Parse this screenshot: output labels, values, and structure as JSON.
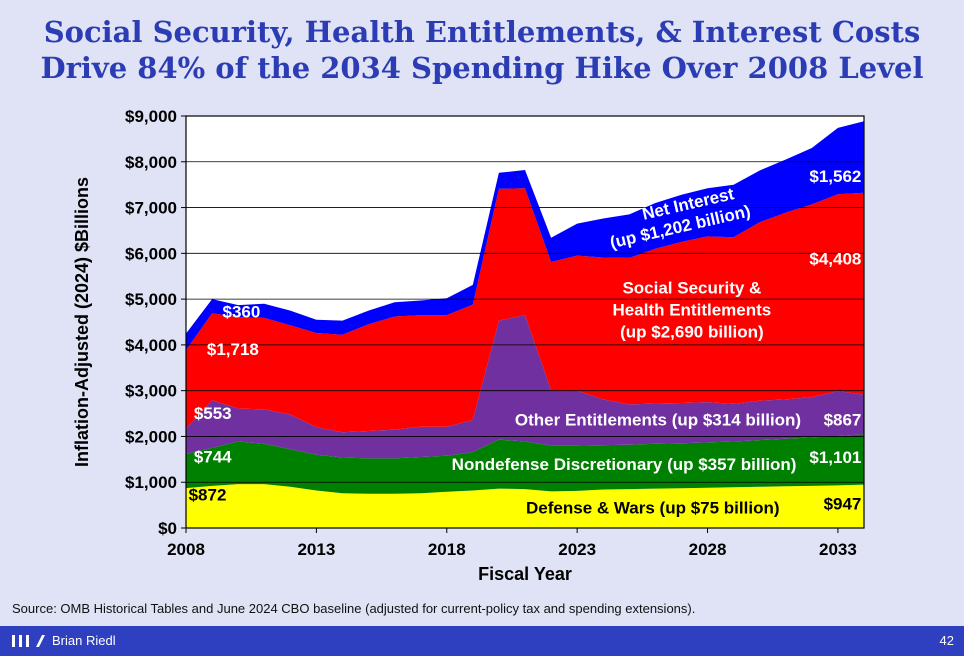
{
  "title_lines": [
    "Social Security, Health Entitlements, & Interest Costs",
    "Drive 84% of the 2034 Spending Hike Over 2008 Level"
  ],
  "source": "Source: OMB Historical Tables and June 2024 CBO baseline (adjusted for current-policy tax and spending extensions).",
  "footer": {
    "author": "Brian Riedl",
    "page_number": "42"
  },
  "colors": {
    "defense": "#ffff00",
    "nondefense": "#008000",
    "other_entitlements": "#7030a0",
    "social_security_health": "#ff0000",
    "net_interest": "#0000ff",
    "plot_bg": "#ffffff",
    "title": "#2b3cb5",
    "footer_bg": "#2e3fbf"
  },
  "chart_data": {
    "type": "area",
    "stacked": true,
    "title": "Social Security, Health Entitlements, & Interest Costs Drive 84% of the 2034 Spending Hike Over 2008 Level",
    "xlabel": "Fiscal Year",
    "ylabel": "Inflation-Adjusted (2024) $Billions",
    "xlim": [
      2008,
      2034
    ],
    "ylim": [
      0,
      9000
    ],
    "x_ticks": [
      "2008",
      "2013",
      "2018",
      "2023",
      "2028",
      "2033"
    ],
    "y_ticks": [
      "$0",
      "$1,000",
      "$2,000",
      "$3,000",
      "$4,000",
      "$5,000",
      "$6,000",
      "$7,000",
      "$8,000",
      "$9,000"
    ],
    "grid": true,
    "x": [
      2008,
      2009,
      2010,
      2011,
      2012,
      2013,
      2014,
      2015,
      2016,
      2017,
      2018,
      2019,
      2020,
      2021,
      2022,
      2023,
      2024,
      2025,
      2026,
      2027,
      2028,
      2029,
      2030,
      2031,
      2032,
      2033,
      2034
    ],
    "series": [
      {
        "name": "Defense & Wars",
        "color_key": "defense",
        "values": [
          872,
          920,
          960,
          960,
          900,
          820,
          760,
          750,
          750,
          760,
          790,
          820,
          860,
          850,
          800,
          810,
          840,
          850,
          860,
          870,
          880,
          890,
          900,
          910,
          920,
          930,
          947
        ]
      },
      {
        "name": "Nondefense Discretionary",
        "color_key": "nondefense",
        "values": [
          744,
          830,
          930,
          880,
          820,
          780,
          780,
          770,
          770,
          790,
          790,
          840,
          1070,
          1040,
          1000,
          990,
          970,
          970,
          980,
          980,
          990,
          1000,
          1020,
          1040,
          1060,
          1080,
          1101
        ]
      },
      {
        "name": "Other Entitlements",
        "color_key": "other_entitlements",
        "values": [
          553,
          1040,
          720,
          750,
          760,
          600,
          550,
          600,
          630,
          660,
          630,
          700,
          2600,
          2760,
          1210,
          1200,
          1000,
          880,
          880,
          880,
          880,
          820,
          860,
          860,
          880,
          980,
          867
        ]
      },
      {
        "name": "Social Security & Health Entitlements",
        "color_key": "social_security_health",
        "values": [
          1718,
          1900,
          2000,
          2000,
          1950,
          2060,
          2130,
          2330,
          2470,
          2440,
          2440,
          2520,
          2880,
          2770,
          2800,
          2950,
          3100,
          3200,
          3380,
          3520,
          3620,
          3640,
          3900,
          4080,
          4210,
          4300,
          4408
        ]
      },
      {
        "name": "Net Interest",
        "color_key": "net_interest",
        "values": [
          360,
          310,
          260,
          310,
          320,
          290,
          310,
          300,
          310,
          320,
          370,
          430,
          350,
          400,
          530,
          700,
          850,
          950,
          1000,
          1030,
          1050,
          1150,
          1130,
          1160,
          1230,
          1450,
          1562
        ]
      }
    ],
    "annotations": [
      {
        "text": "$872",
        "x": 2008.1,
        "y": 600,
        "anchor": "start",
        "color": "#000000"
      },
      {
        "text": "$744",
        "x": 2008.3,
        "y": 1430,
        "anchor": "start",
        "color": "#ffffff"
      },
      {
        "text": "$553",
        "x": 2008.3,
        "y": 2380,
        "anchor": "start",
        "color": "#ffffff"
      },
      {
        "text": "$1,718",
        "x": 2008.8,
        "y": 3780,
        "anchor": "start",
        "color": "#ffffff"
      },
      {
        "text": "$360",
        "x": 2009.4,
        "y": 4600,
        "anchor": "start",
        "color": "#ffffff"
      },
      {
        "text": "Defense & Wars (up $75 billion)",
        "x": 2025.9,
        "y": 320,
        "anchor": "middle",
        "color": "#000000"
      },
      {
        "text": "Nondefense Discretionary (up $357 billion)",
        "x": 2024.8,
        "y": 1270,
        "anchor": "middle",
        "color": "#ffffff"
      },
      {
        "text": "Other Entitlements (up $314 billion)",
        "x": 2026.1,
        "y": 2240,
        "anchor": "middle",
        "color": "#ffffff"
      },
      {
        "text": "Social Security &",
        "x": 2027.4,
        "y": 5120,
        "anchor": "middle",
        "color": "#ffffff"
      },
      {
        "text": "Health Entitlements",
        "x": 2027.4,
        "y": 4640,
        "anchor": "middle",
        "color": "#ffffff"
      },
      {
        "text": "(up $2,690 billion)",
        "x": 2027.4,
        "y": 4160,
        "anchor": "middle",
        "color": "#ffffff"
      },
      {
        "text": "$947",
        "x": 2033.9,
        "y": 400,
        "anchor": "end",
        "color": "#000000"
      },
      {
        "text": "$1,101",
        "x": 2033.9,
        "y": 1420,
        "anchor": "end",
        "color": "#ffffff"
      },
      {
        "text": "$867",
        "x": 2033.9,
        "y": 2240,
        "anchor": "end",
        "color": "#ffffff"
      },
      {
        "text": "$4,408",
        "x": 2033.9,
        "y": 5760,
        "anchor": "end",
        "color": "#ffffff"
      },
      {
        "text": "$1,562",
        "x": 2033.9,
        "y": 7560,
        "anchor": "end",
        "color": "#ffffff"
      }
    ],
    "rotated_annotations": [
      {
        "text": "Net Interest",
        "x": 2027.3,
        "y": 6960,
        "angle": -13,
        "color": "#ffffff"
      },
      {
        "text": "(up $1,202 billion)",
        "x": 2027.0,
        "y": 6460,
        "angle": -13,
        "color": "#ffffff"
      }
    ]
  }
}
